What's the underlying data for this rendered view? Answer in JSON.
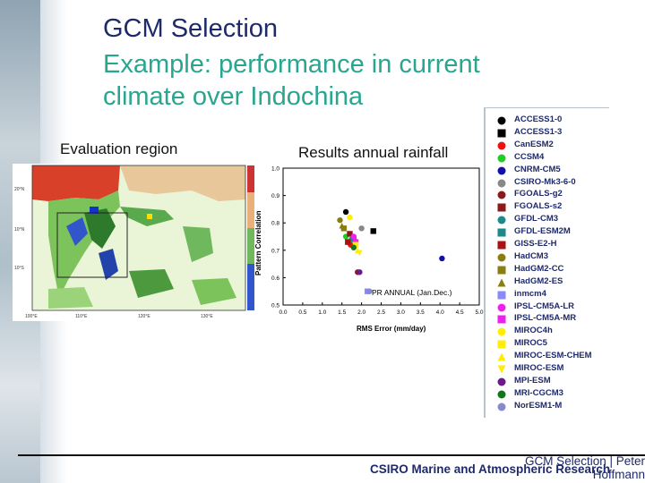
{
  "slide": {
    "title": "GCM Selection",
    "subtitle": "Example: performance in current climate over Indochina",
    "map_label": "Evaluation region",
    "chart_label": "Results annual rainfall",
    "footer_org": "CSIRO Marine and Atmospheric Research",
    "footer_topic": "GCM Selection | Peter Hoffmann"
  },
  "map": {
    "lat_labels": [
      "20°N",
      "10°N",
      "10°S"
    ],
    "lon_labels": [
      "100°E",
      "110°E",
      "120°E",
      "130°E"
    ]
  },
  "chart_data": {
    "type": "scatter",
    "xlabel": "RMS Error (mm/day)",
    "ylabel": "Pattern Correlation",
    "annotation": "PR ANNUAL (Jan.Dec.)",
    "xlim": [
      0,
      5
    ],
    "ylim": [
      0.5,
      1.0
    ],
    "x_ticks": [
      "0.0",
      "0.5",
      "1.0",
      "1.5",
      "2.0",
      "2.5",
      "3.0",
      "3.5",
      "4.0",
      "4.5",
      "5.0"
    ],
    "y_ticks": [
      "0.5",
      "0.6",
      "0.7",
      "0.8",
      "0.9",
      "1.0"
    ],
    "series": [
      {
        "name": "ACCESS1-0",
        "color": "#000000",
        "marker": "circle",
        "x": 1.6,
        "y": 0.84
      },
      {
        "name": "ACCESS1-3",
        "color": "#000000",
        "marker": "square",
        "x": 2.3,
        "y": 0.77
      },
      {
        "name": "CanESM2",
        "color": "#ee1111",
        "marker": "circle",
        "x": 1.72,
        "y": 0.72
      },
      {
        "name": "CCSM4",
        "color": "#22cc22",
        "marker": "circle",
        "x": 1.6,
        "y": 0.75
      },
      {
        "name": "CNRM-CM5",
        "color": "#1111aa",
        "marker": "circle",
        "x": 4.05,
        "y": 0.67
      },
      {
        "name": "CSIRO-Mk3-6-0",
        "color": "#888888",
        "marker": "circle",
        "x": 2.0,
        "y": 0.78
      },
      {
        "name": "FGOALS-g2",
        "color": "#8b1a1a",
        "marker": "circle",
        "x": 1.9,
        "y": 0.62
      },
      {
        "name": "FGOALS-s2",
        "color": "#8b1a1a",
        "marker": "square",
        "x": 1.7,
        "y": 0.76
      },
      {
        "name": "GFDL-CM3",
        "color": "#1a8a8a",
        "marker": "circle",
        "x": 1.75,
        "y": 0.74
      },
      {
        "name": "GFDL-ESM2M",
        "color": "#1a8a8a",
        "marker": "square",
        "x": 1.8,
        "y": 0.74
      },
      {
        "name": "GISS-E2-H",
        "color": "#aa1111",
        "marker": "square",
        "x": 1.65,
        "y": 0.73
      },
      {
        "name": "HadCM3",
        "color": "#8b7d10",
        "marker": "circle",
        "x": 1.45,
        "y": 0.81
      },
      {
        "name": "HadGM2-CC",
        "color": "#8b7d10",
        "marker": "square",
        "x": 1.55,
        "y": 0.78
      },
      {
        "name": "HadGM2-ES",
        "color": "#8b7d10",
        "marker": "triangle",
        "x": 1.5,
        "y": 0.79
      },
      {
        "name": "inmcm4",
        "color": "#8888ff",
        "marker": "square",
        "x": 2.15,
        "y": 0.55
      },
      {
        "name": "IPSL-CM5A-LR",
        "color": "#ee22ee",
        "marker": "circle",
        "x": 1.8,
        "y": 0.75
      },
      {
        "name": "IPSL-CM5A-MR",
        "color": "#ee22ee",
        "marker": "square",
        "x": 1.85,
        "y": 0.73
      },
      {
        "name": "MIROC4h",
        "color": "#ffee00",
        "marker": "circle",
        "x": 1.7,
        "y": 0.82
      },
      {
        "name": "MIROC5",
        "color": "#ffee00",
        "marker": "square",
        "x": 1.85,
        "y": 0.72
      },
      {
        "name": "MIROC-ESM-CHEM",
        "color": "#ffee00",
        "marker": "triangle",
        "x": 1.9,
        "y": 0.7
      },
      {
        "name": "MIROC-ESM",
        "color": "#ffee00",
        "marker": "triangle-down",
        "x": 1.95,
        "y": 0.69
      },
      {
        "name": "MPI-ESM",
        "color": "#6a1a8a",
        "marker": "circle",
        "x": 1.95,
        "y": 0.62
      },
      {
        "name": "MRI-CGCM3",
        "color": "#11771a",
        "marker": "circle",
        "x": 1.8,
        "y": 0.71
      },
      {
        "name": "NorESM1-M",
        "color": "#8888cc",
        "marker": "circle",
        "x": 2.2,
        "y": 0.55
      }
    ]
  }
}
